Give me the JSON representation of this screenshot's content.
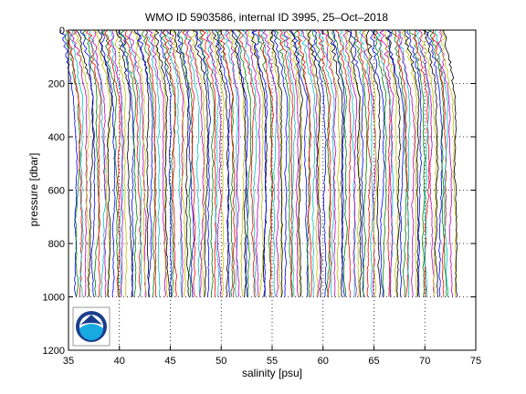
{
  "chart_data": {
    "type": "line",
    "title": "WMO ID 5903586, internal ID 3995, 25–Oct–2018",
    "xlabel": "salinity [psu]",
    "ylabel": "pressure [dbar]",
    "xlim": [
      35,
      75
    ],
    "ylim": [
      1200,
      0
    ],
    "y_reversed": true,
    "xticks": [
      35,
      40,
      45,
      50,
      55,
      60,
      65,
      70,
      75
    ],
    "yticks": [
      0,
      200,
      400,
      600,
      800,
      1000,
      1200
    ],
    "xtick_labels": [
      "35",
      "40",
      "45",
      "50",
      "55",
      "60",
      "65",
      "70",
      "75"
    ],
    "ytick_labels": [
      "0",
      "200",
      "400",
      "600",
      "800",
      "1000",
      "1200"
    ],
    "grid": "dotted",
    "series_colors": [
      "#0000ff",
      "#008000",
      "#ff0000",
      "#00bfbf",
      "#bf00bf",
      "#bfbf00",
      "#000000"
    ],
    "profiles": {
      "count": 140,
      "first_offset_psu": 35.6,
      "offset_step_psu": 0.27,
      "pressure_min_dbar": 0,
      "pressure_max_dbar": 1000,
      "note": "Each cast is a salinity profile offset horizontally; surface values are lower than deep values."
    },
    "logo": "noaa-logo"
  }
}
